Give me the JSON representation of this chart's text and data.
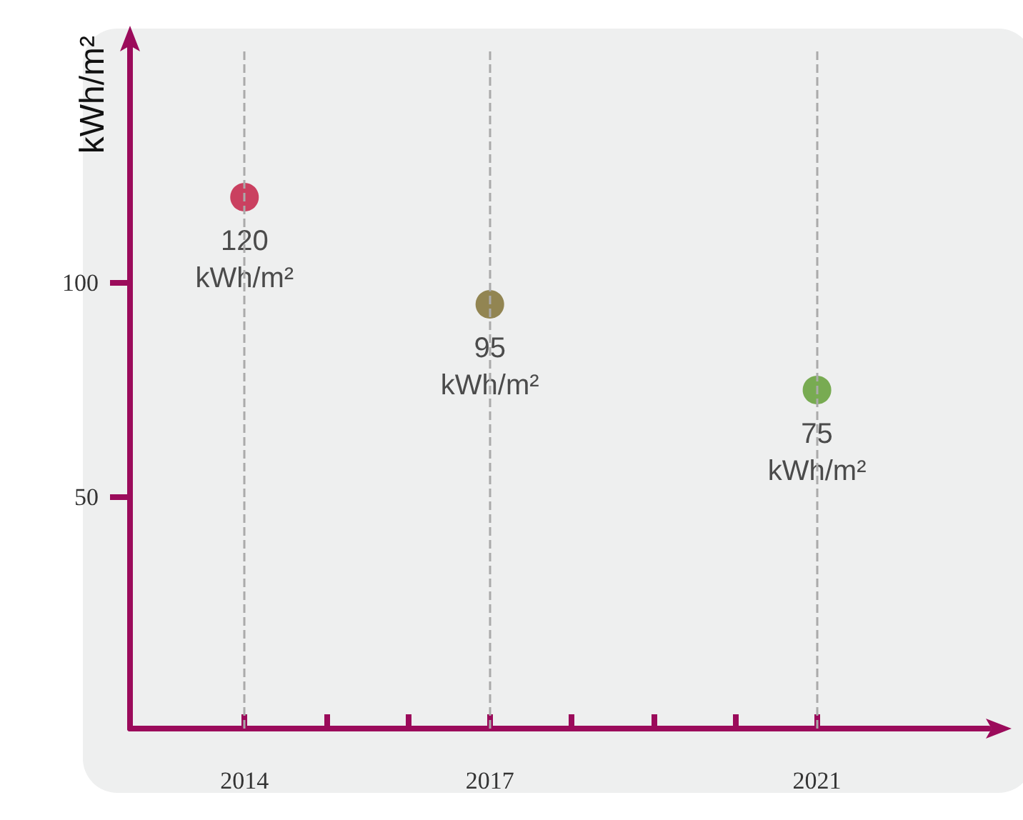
{
  "chart_data": {
    "type": "scatter",
    "ylabel": "kWh/m²",
    "x": [
      2014,
      2017,
      2021
    ],
    "values": [
      120,
      95,
      75
    ],
    "colors": [
      "#c0143c",
      "#7a6a2a",
      "#5a9a2a"
    ],
    "value_labels": [
      "120\nkWh/m²",
      "95\nkWh/m²",
      "75\nkWh/m²"
    ],
    "xlim": [
      2012.6,
      2023.1
    ],
    "xticks": [
      2014,
      {
        "value": 2015,
        "label": null
      },
      {
        "value": 2016,
        "label": null
      },
      2017,
      {
        "value": 2018,
        "label": null
      },
      {
        "value": 2019,
        "label": null
      },
      {
        "value": 2020,
        "label": null
      },
      2021
    ],
    "ylim": [
      -4,
      155
    ],
    "yticks": [
      50,
      100
    ],
    "ref_lines": [
      {
        "axis": "x",
        "value": 2014,
        "color": "#aaaaaa",
        "line_style": "dashed"
      },
      {
        "axis": "x",
        "value": 2017,
        "color": "#aaaaaa",
        "line_style": "dashed"
      },
      {
        "axis": "x",
        "value": 2021,
        "color": "#aaaaaa",
        "line_style": "dashed"
      }
    ],
    "marker": "circle"
  }
}
